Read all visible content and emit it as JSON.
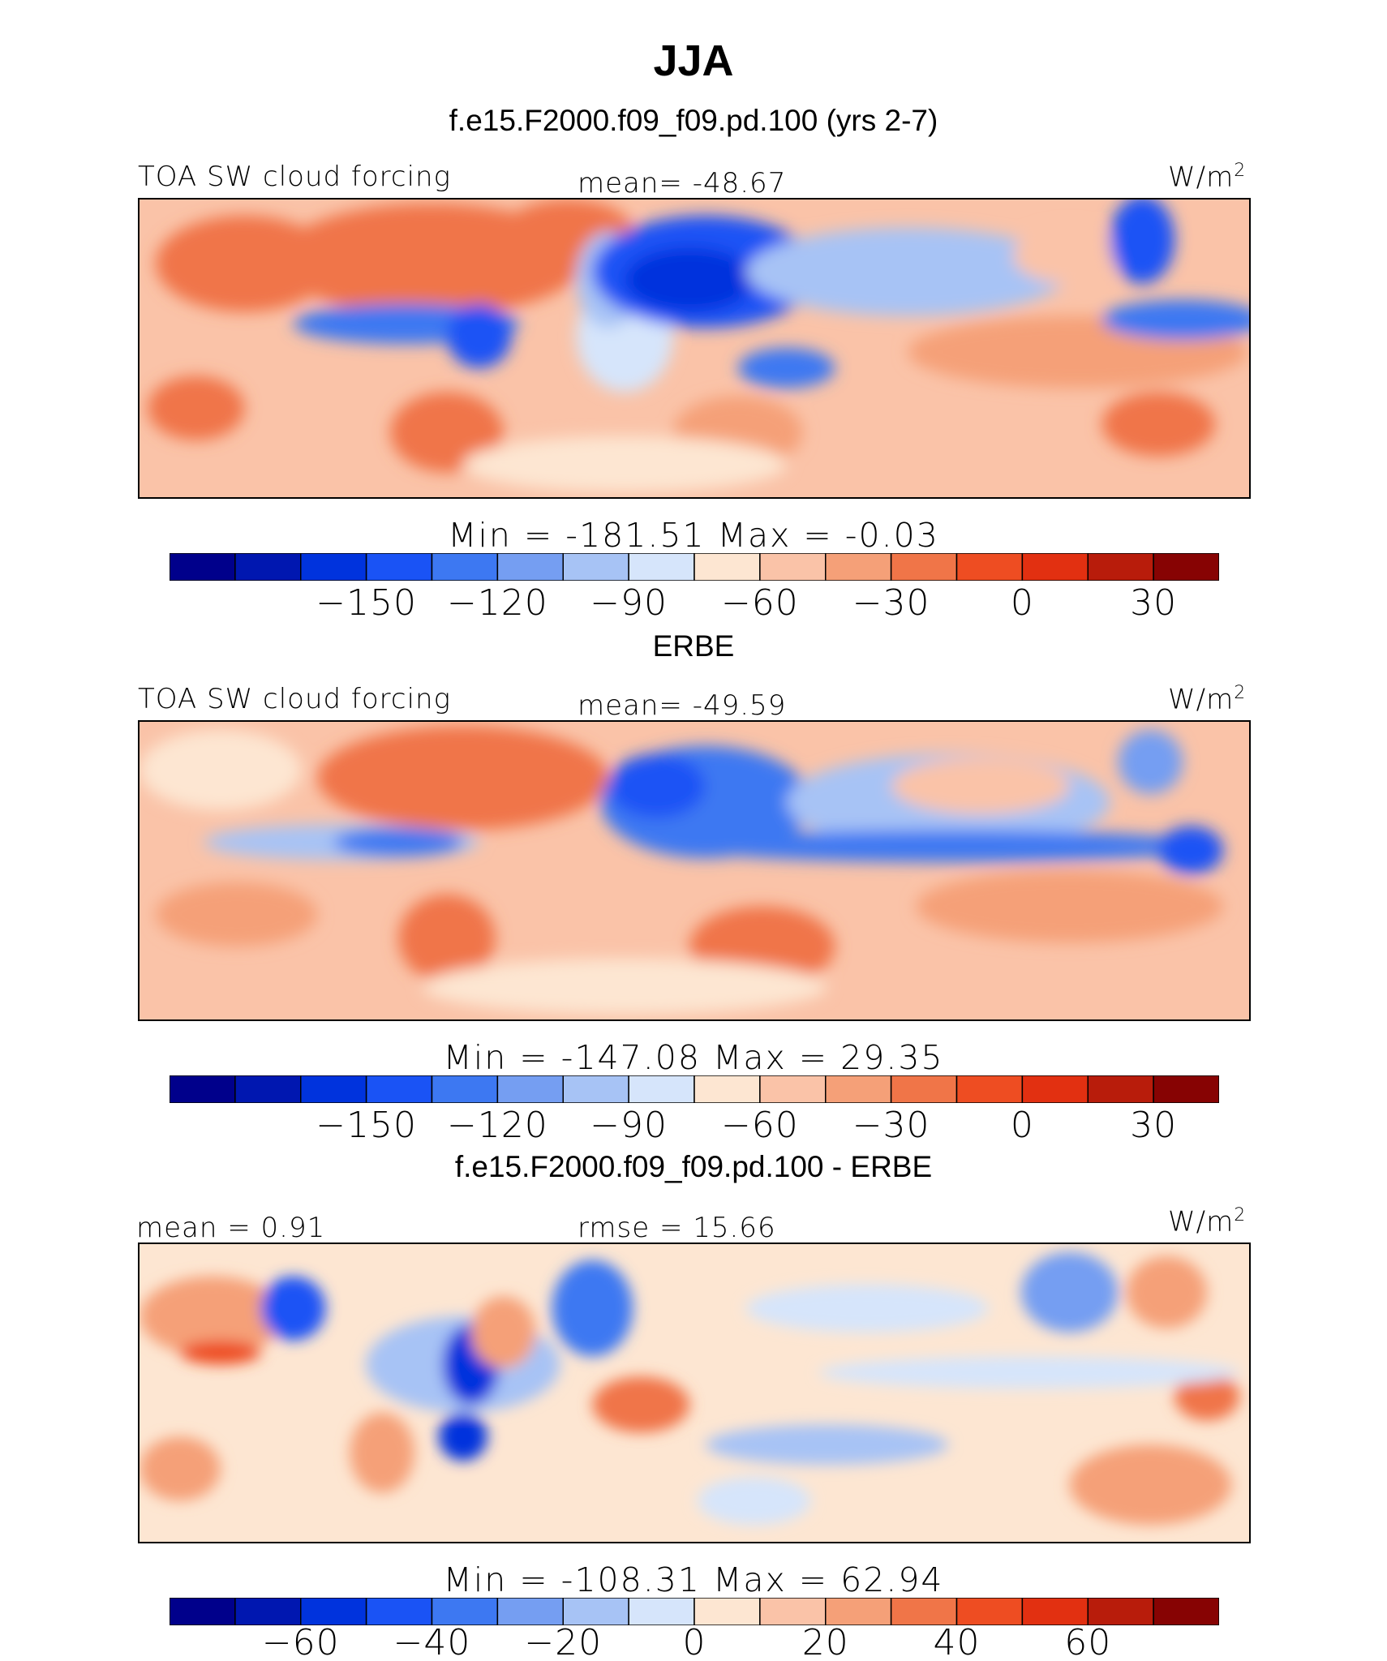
{
  "page": {
    "title": "JJA"
  },
  "palette": [
    "#00008b",
    "#0017b0",
    "#0033dd",
    "#1a53f5",
    "#3d78f2",
    "#759ef2",
    "#a7c3f5",
    "#d6e5fb",
    "#fde6d2",
    "#fac3a8",
    "#f5a078",
    "#f07548",
    "#ee4d22",
    "#e23011",
    "#b81c0b",
    "#870303"
  ],
  "chart_data": [
    {
      "type": "heatmap",
      "title": "f.e15.F2000.f09_f09.pd.100 (yrs 2-7)",
      "left_label": "TOA SW cloud forcing",
      "center_label": "mean=  -48.67",
      "units": "W/m",
      "units_sup": "2",
      "min_max": "Min  =  -181.51  Max  =    -0.03",
      "colorbar_ticks": [
        "-150",
        "-120",
        "-90",
        "-60",
        "-30",
        "0",
        "30"
      ],
      "colorbar_tick_levels": [
        -150,
        -120,
        -90,
        -60,
        -30,
        0,
        30
      ],
      "colorbar_range": [
        -195,
        45
      ],
      "xlim": [
        0,
        360
      ],
      "ylim": [
        -40,
        40
      ]
    },
    {
      "type": "heatmap",
      "title": "ERBE",
      "left_label": "TOA SW cloud forcing",
      "center_label": "mean=  -49.59",
      "units": "W/m",
      "units_sup": "2",
      "min_max": "Min  =  -147.08  Max  =    29.35",
      "colorbar_ticks": [
        "-150",
        "-120",
        "-90",
        "-60",
        "-30",
        "0",
        "30"
      ],
      "colorbar_tick_levels": [
        -150,
        -120,
        -90,
        -60,
        -30,
        0,
        30
      ],
      "colorbar_range": [
        -195,
        45
      ],
      "xlim": [
        0,
        360
      ],
      "ylim": [
        -40,
        40
      ]
    },
    {
      "type": "heatmap",
      "title": "f.e15.F2000.f09_f09.pd.100 - ERBE",
      "left_label": "mean  =    0.91",
      "center_label": "rmse  =   15.66",
      "units": "W/m",
      "units_sup": "2",
      "min_max": "Min  =  -108.31  Max  =    62.94",
      "colorbar_ticks": [
        "-60",
        "-40",
        "-20",
        "0",
        "20",
        "40",
        "60"
      ],
      "colorbar_tick_levels": [
        -60,
        -40,
        -20,
        0,
        20,
        40,
        60
      ],
      "colorbar_range": [
        -80,
        80
      ],
      "xlim": [
        0,
        360
      ],
      "ylim": [
        -40,
        40
      ]
    }
  ]
}
